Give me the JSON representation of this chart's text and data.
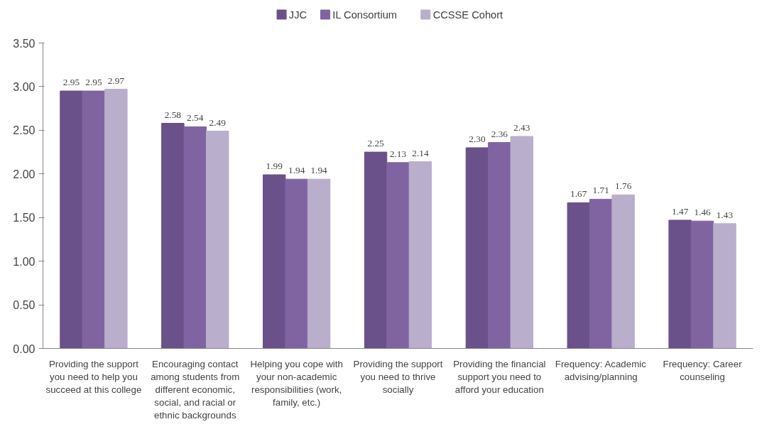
{
  "chart_data": {
    "type": "bar",
    "categories": [
      "Providing the support you need to help you succeed at this college",
      "Encouraging contact among students from different economic, social, and racial or ethnic backgrounds",
      "Helping you cope with your non-academic responsibilities (work, family, etc.)",
      "Providing the support you need to thrive socially",
      "Providing the financial support you need to afford your education",
      "Frequency: Academic advising/planning",
      "Frequency: Career counseling"
    ],
    "series": [
      {
        "name": "JJC",
        "color": "#6a5189",
        "values": [
          2.95,
          2.58,
          1.99,
          2.25,
          2.3,
          1.67,
          1.47
        ]
      },
      {
        "name": "IL Consortium",
        "color": "#8064a2",
        "values": [
          2.95,
          2.54,
          1.94,
          2.13,
          2.36,
          1.71,
          1.46
        ]
      },
      {
        "name": "CCSSE Cohort",
        "color": "#b9aecb",
        "values": [
          2.97,
          2.49,
          1.94,
          2.14,
          2.43,
          1.76,
          1.43
        ]
      }
    ],
    "ylim": [
      0,
      3.5
    ],
    "yticks": [
      {
        "value": 0,
        "label": "0.00"
      },
      {
        "value": 0.5,
        "label": "0.50"
      },
      {
        "value": 1,
        "label": "1.00"
      },
      {
        "value": 1.5,
        "label": "1.50"
      },
      {
        "value": 2,
        "label": "2.00"
      },
      {
        "value": 2.5,
        "label": "2.50"
      },
      {
        "value": 3,
        "label": "3.00"
      },
      {
        "value": 3.5,
        "label": "3.50"
      }
    ],
    "value_labels": [
      [
        "2.95",
        "2.58",
        "1.99",
        "2.25",
        "2.30",
        "1.67",
        "1.47"
      ],
      [
        "2.95",
        "2.54",
        "1.94",
        "2.13",
        "2.36",
        "1.71",
        "1.46"
      ],
      [
        "2.97",
        "2.49",
        "1.94",
        "2.14",
        "2.43",
        "1.76",
        "1.43"
      ]
    ],
    "grid": false,
    "legend": "top"
  }
}
